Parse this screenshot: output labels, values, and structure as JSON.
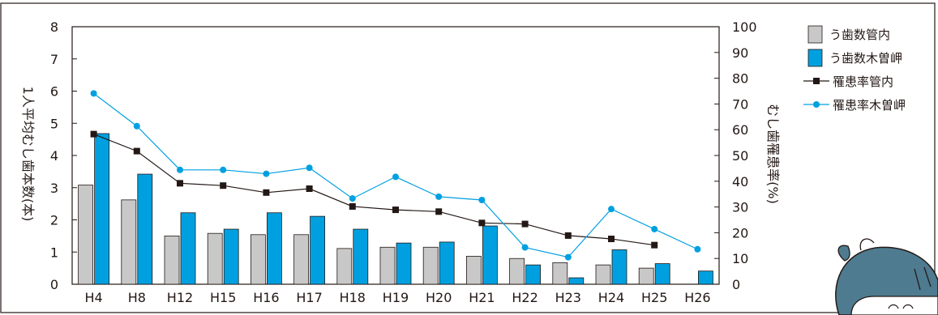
{
  "chart_data": {
    "type": "bar",
    "categories": [
      "H4",
      "H8",
      "H12",
      "H15",
      "H16",
      "H17",
      "H18",
      "H19",
      "H20",
      "H21",
      "H22",
      "H23",
      "H24",
      "H25",
      "H26"
    ],
    "ylabel_left": "1人平均むし歯本数(本)",
    "ylabel_right": "むし歯罹患率(%)",
    "ylim_left": [
      0,
      8
    ],
    "ylim_right": [
      0,
      100
    ],
    "yticks_left": [
      "0",
      "1",
      "2",
      "3",
      "4",
      "5",
      "6",
      "7",
      "8"
    ],
    "yticks_right": [
      "0",
      "10",
      "20",
      "30",
      "40",
      "50",
      "60",
      "70",
      "80",
      "90",
      "100"
    ],
    "grid": false,
    "legend_position": "top-right",
    "bar_series": [
      {
        "name": "う歯数管内",
        "color": "#c8c8c8",
        "values": [
          3.08,
          2.62,
          1.5,
          1.58,
          1.54,
          1.54,
          1.11,
          1.15,
          1.15,
          0.87,
          0.8,
          0.67,
          0.6,
          0.5,
          null
        ]
      },
      {
        "name": "う歯数木曽岬",
        "color": "#00a0e0",
        "values": [
          4.68,
          3.42,
          2.22,
          1.71,
          2.22,
          2.11,
          1.71,
          1.28,
          1.31,
          1.81,
          0.6,
          0.2,
          1.07,
          0.64,
          0.41
        ]
      }
    ],
    "line_series": [
      {
        "name": "罹患率管内",
        "color": "#231815",
        "marker": "square",
        "values": [
          58.3,
          51.7,
          39.2,
          38.3,
          35.6,
          37.1,
          30.2,
          28.9,
          28.2,
          23.8,
          23.4,
          18.9,
          17.6,
          15.2,
          null
        ]
      },
      {
        "name": "罹患率木曽岬",
        "color": "#00a0e0",
        "marker": "circle",
        "values": [
          74.1,
          61.4,
          44.4,
          44.4,
          42.9,
          45.2,
          33.3,
          41.7,
          34.0,
          32.7,
          14.3,
          10.5,
          29.2,
          21.4,
          13.6
        ]
      }
    ]
  }
}
